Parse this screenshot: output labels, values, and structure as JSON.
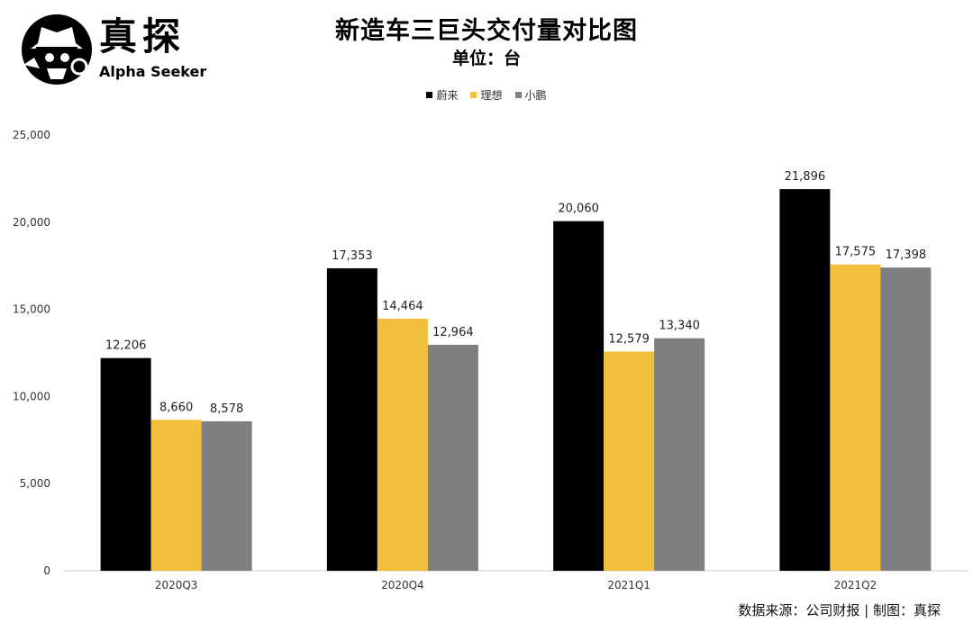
{
  "logo": {
    "brand": "真探",
    "sub": "Alpha Seeker"
  },
  "source_note": "数据来源：公司财报 | 制图：真探",
  "colors": {
    "蔚来": "#000000",
    "理想": "#F2BF3D",
    "小鹏": "#7F7F7F"
  },
  "chart_data": {
    "type": "bar",
    "title": "新造车三巨头交付量对比图",
    "subtitle": "单位：台",
    "categories": [
      "2020Q3",
      "2020Q4",
      "2021Q1",
      "2021Q2"
    ],
    "series": [
      {
        "name": "蔚来",
        "values": [
          12206,
          17353,
          20060,
          21896
        ]
      },
      {
        "name": "理想",
        "values": [
          8660,
          14464,
          12579,
          17575
        ]
      },
      {
        "name": "小鹏",
        "values": [
          8578,
          12964,
          13340,
          17398
        ]
      }
    ],
    "yticks": [
      "0",
      "5,000",
      "10,000",
      "15,000",
      "20,000",
      "25,000"
    ],
    "data_labels": [
      [
        "12,206",
        "17,353",
        "20,060",
        "21,896"
      ],
      [
        "8,660",
        "14,464",
        "12,579",
        "17,575"
      ],
      [
        "8,578",
        "12,964",
        "13,340",
        "17,398"
      ]
    ],
    "ylim": [
      0,
      25000
    ],
    "grid": false,
    "legend_position": "top-center",
    "xlabel": "",
    "ylabel": ""
  }
}
